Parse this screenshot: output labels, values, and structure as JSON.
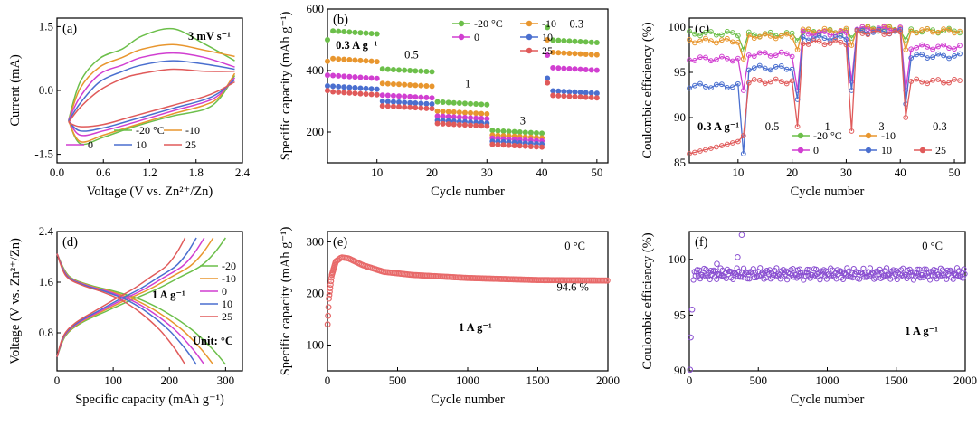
{
  "chart_data": [
    {
      "panel": "a",
      "type": "line",
      "panel_label": "(a)",
      "annotation": "3 mV s⁻¹",
      "xlabel": "Voltage (V vs. Zn²⁺/Zn)",
      "ylabel": "Current (mA)",
      "xlim": [
        0,
        2.4
      ],
      "ylim": [
        -1.7,
        1.7
      ],
      "xticks": [
        0,
        0.6,
        1.2,
        1.8,
        2.4
      ],
      "xtick_labels": [
        "0.0",
        "0.6",
        "1.2",
        "1.8",
        "2.4"
      ],
      "yticks": [
        -1.5,
        0,
        1.5
      ],
      "ytick_labels": [
        "-1.5",
        "0.0",
        "1.5"
      ],
      "legend_position": "bottom",
      "series": [
        {
          "name": "-20 °C",
          "color": "#6cbf4a",
          "anodic": [
            [
              0.15,
              -0.7
            ],
            [
              0.3,
              0.2
            ],
            [
              0.55,
              0.75
            ],
            [
              0.85,
              0.98
            ],
            [
              1.1,
              1.28
            ],
            [
              1.5,
              1.45
            ],
            [
              1.9,
              1.1
            ],
            [
              2.3,
              0.7
            ]
          ],
          "cathodic": [
            [
              2.3,
              0.35
            ],
            [
              2.1,
              -0.2
            ],
            [
              1.9,
              -0.45
            ],
            [
              1.5,
              -0.6
            ],
            [
              1.0,
              -0.85
            ],
            [
              0.6,
              -1.1
            ],
            [
              0.3,
              -1.25
            ],
            [
              0.15,
              -0.7
            ]
          ]
        },
        {
          "name": "-10",
          "color": "#e8962e",
          "anodic": [
            [
              0.15,
              -0.72
            ],
            [
              0.3,
              0.05
            ],
            [
              0.55,
              0.55
            ],
            [
              0.85,
              0.78
            ],
            [
              1.1,
              0.97
            ],
            [
              1.5,
              1.08
            ],
            [
              1.9,
              0.95
            ],
            [
              2.3,
              0.8
            ]
          ],
          "cathodic": [
            [
              2.3,
              0.4
            ],
            [
              2.1,
              -0.15
            ],
            [
              1.9,
              -0.35
            ],
            [
              1.5,
              -0.55
            ],
            [
              1.0,
              -0.82
            ],
            [
              0.6,
              -1.05
            ],
            [
              0.3,
              -1.2
            ],
            [
              0.15,
              -0.72
            ]
          ]
        },
        {
          "name": "0",
          "color": "#d13fd1",
          "anodic": [
            [
              0.15,
              -0.7
            ],
            [
              0.3,
              -0.15
            ],
            [
              0.55,
              0.38
            ],
            [
              0.85,
              0.6
            ],
            [
              1.1,
              0.78
            ],
            [
              1.5,
              0.88
            ],
            [
              1.9,
              0.78
            ],
            [
              2.3,
              0.55
            ]
          ],
          "cathodic": [
            [
              2.3,
              0.3
            ],
            [
              2.1,
              -0.1
            ],
            [
              1.9,
              -0.28
            ],
            [
              1.5,
              -0.48
            ],
            [
              1.0,
              -0.75
            ],
            [
              0.6,
              -0.95
            ],
            [
              0.3,
              -1.05
            ],
            [
              0.15,
              -0.7
            ]
          ]
        },
        {
          "name": "10",
          "color": "#4a6fcf",
          "anodic": [
            [
              0.15,
              -0.72
            ],
            [
              0.3,
              -0.3
            ],
            [
              0.55,
              0.2
            ],
            [
              0.85,
              0.45
            ],
            [
              1.1,
              0.6
            ],
            [
              1.5,
              0.7
            ],
            [
              1.9,
              0.62
            ],
            [
              2.3,
              0.5
            ]
          ],
          "cathodic": [
            [
              2.3,
              0.25
            ],
            [
              2.1,
              -0.05
            ],
            [
              1.9,
              -0.22
            ],
            [
              1.5,
              -0.42
            ],
            [
              1.0,
              -0.68
            ],
            [
              0.6,
              -0.88
            ],
            [
              0.3,
              -0.95
            ],
            [
              0.15,
              -0.72
            ]
          ]
        },
        {
          "name": "25",
          "color": "#e05a5a",
          "anodic": [
            [
              0.15,
              -0.75
            ],
            [
              0.3,
              -0.4
            ],
            [
              0.55,
              0.0
            ],
            [
              0.85,
              0.28
            ],
            [
              1.1,
              0.4
            ],
            [
              1.5,
              0.5
            ],
            [
              1.9,
              0.45
            ],
            [
              2.3,
              0.45
            ]
          ],
          "cathodic": [
            [
              2.3,
              0.2
            ],
            [
              2.1,
              0.0
            ],
            [
              1.9,
              -0.15
            ],
            [
              1.5,
              -0.35
            ],
            [
              1.0,
              -0.6
            ],
            [
              0.6,
              -0.8
            ],
            [
              0.3,
              -0.85
            ],
            [
              0.15,
              -0.75
            ]
          ]
        }
      ]
    },
    {
      "panel": "b",
      "type": "scatter",
      "panel_label": "(b)",
      "xlabel": "Cycle number",
      "ylabel": "Specific capacity  (mAh g⁻¹)",
      "xlim": [
        1,
        52
      ],
      "ylim": [
        100,
        600
      ],
      "xticks": [
        10,
        20,
        30,
        40,
        50
      ],
      "yticks": [
        200,
        400,
        600
      ],
      "rate_labels": [
        {
          "text": "0.3 A g⁻¹",
          "x": 2.5,
          "y": 470
        },
        {
          "text": "0.5",
          "x": 15,
          "y": 440
        },
        {
          "text": "1",
          "x": 26,
          "y": 345
        },
        {
          "text": "3",
          "x": 36,
          "y": 225
        },
        {
          "text": "0.3",
          "x": 45,
          "y": 540
        }
      ],
      "legend_position": "top",
      "segments": [
        [
          1,
          10
        ],
        [
          11,
          20
        ],
        [
          21,
          30
        ],
        [
          31,
          40
        ],
        [
          41,
          50
        ]
      ],
      "series": [
        {
          "name": "-20 °C",
          "color": "#6cbf4a",
          "levels": [
            530,
            405,
            298,
            205,
            500
          ],
          "first": [
            500,
            425
          ]
        },
        {
          "name": "-10",
          "color": "#e8962e",
          "levels": [
            440,
            358,
            268,
            190,
            460
          ],
          "first": [
            430,
            375
          ]
        },
        {
          "name": "0",
          "color": "#d13fd1",
          "levels": [
            385,
            320,
            252,
            180,
            410
          ],
          "first": [
            385,
            340
          ]
        },
        {
          "name": "10",
          "color": "#4a6fcf",
          "levels": [
            350,
            300,
            238,
            170,
            335
          ],
          "first": [
            350,
            320
          ]
        },
        {
          "name": "25",
          "color": "#e05a5a",
          "levels": [
            332,
            285,
            228,
            160,
            320
          ],
          "first": [
            335,
            305
          ]
        }
      ]
    },
    {
      "panel": "c",
      "type": "line",
      "panel_label": "(c)",
      "xlabel": "Cycle number",
      "ylabel": "Coulombic efficiency (%)",
      "xlim": [
        1,
        52
      ],
      "ylim": [
        85,
        101
      ],
      "xticks": [
        10,
        20,
        30,
        40,
        50
      ],
      "yticks": [
        85,
        90,
        95,
        100
      ],
      "rate_labels": [
        {
          "text": "0.3 A g⁻¹",
          "x": 2.5,
          "y": 88.6
        },
        {
          "text": "0.5",
          "x": 15,
          "y": 88.6
        },
        {
          "text": "1",
          "x": 26,
          "y": 88.6
        },
        {
          "text": "3",
          "x": 36,
          "y": 88.6
        },
        {
          "text": "0.3",
          "x": 46,
          "y": 88.6
        }
      ],
      "legend_position": "bottom",
      "series": [
        {
          "name": "-20 °C",
          "color": "#6cbf4a",
          "base": [
            99.3,
            99.2,
            99.5,
            99.8,
            99.6
          ],
          "dips": [
            [
              11,
              97.5
            ],
            [
              21,
              98.5
            ],
            [
              31,
              98.8
            ],
            [
              41,
              98.6
            ]
          ]
        },
        {
          "name": "-10",
          "color": "#e8962e",
          "base": [
            98.5,
            99.0,
            99.6,
            99.9,
            99.6
          ],
          "dips": [
            [
              11,
              96.5
            ],
            [
              21,
              97.5
            ],
            [
              31,
              98.0
            ],
            [
              41,
              97.5
            ]
          ]
        },
        {
          "name": "0",
          "color": "#d13fd1",
          "base": [
            96.5,
            97.0,
            99.3,
            99.8,
            97.8
          ],
          "dips": [
            [
              11,
              93.0
            ],
            [
              21,
              93.0
            ],
            [
              31,
              94.0
            ],
            [
              41,
              93.0
            ]
          ]
        },
        {
          "name": "10",
          "color": "#4a6fcf",
          "base": [
            93.5,
            95.5,
            98.8,
            99.5,
            96.8
          ],
          "dips": [
            [
              11,
              86.0
            ],
            [
              21,
              92.0
            ],
            [
              31,
              93.0
            ],
            [
              41,
              91.5
            ]
          ]
        },
        {
          "name": "25",
          "color": "#e05a5a",
          "base": [
            86.5,
            94.0,
            98.3,
            99.4,
            94.0
          ],
          "dips": [
            [
              11,
              88.0
            ],
            [
              21,
              89.0
            ],
            [
              31,
              88.5
            ],
            [
              41,
              90.0
            ]
          ]
        }
      ]
    },
    {
      "panel": "d",
      "type": "line",
      "panel_label": "(d)",
      "annotation_rate": "1 A g⁻¹",
      "annotation_unit": "Unit: °C",
      "xlabel": "Specific capacity  (mAh g⁻¹)",
      "ylabel": "Voltage (V vs. Zn²⁺/Zn)",
      "xlim": [
        0,
        330
      ],
      "ylim": [
        0.2,
        2.4
      ],
      "xticks": [
        0,
        100,
        200,
        300
      ],
      "yticks": [
        0.8,
        1.6,
        2.4
      ],
      "legend_position": "right",
      "series": [
        {
          "name": "-20",
          "color": "#6cbf4a",
          "capacity": 300
        },
        {
          "name": "-10",
          "color": "#e8962e",
          "capacity": 278
        },
        {
          "name": "0",
          "color": "#d13fd1",
          "capacity": 262
        },
        {
          "name": "10",
          "color": "#4a6fcf",
          "capacity": 248
        },
        {
          "name": "25",
          "color": "#e05a5a",
          "capacity": 228
        }
      ]
    },
    {
      "panel": "e",
      "type": "scatter",
      "panel_label": "(e)",
      "annotation_temp": "0 °C",
      "annotation_rate": "1 A g⁻¹",
      "retention": "94.6 %",
      "xlabel": "Cycle number",
      "ylabel": "Specific capacity  (mAh g⁻¹)",
      "xlim": [
        0,
        2000
      ],
      "ylim": [
        50,
        320
      ],
      "xticks": [
        0,
        500,
        1000,
        1500,
        2000
      ],
      "yticks": [
        100,
        200,
        300
      ],
      "color": "#e86a6a",
      "trend": [
        [
          1,
          140
        ],
        [
          10,
          190
        ],
        [
          30,
          235
        ],
        [
          60,
          262
        ],
        [
          100,
          270
        ],
        [
          150,
          268
        ],
        [
          250,
          255
        ],
        [
          400,
          242
        ],
        [
          600,
          236
        ],
        [
          1000,
          230
        ],
        [
          1500,
          226
        ],
        [
          2000,
          225
        ]
      ]
    },
    {
      "panel": "f",
      "type": "scatter",
      "panel_label": "(f)",
      "annotation_temp": "0 °C",
      "annotation_rate": "1 A g⁻¹",
      "xlabel": "Cycle number",
      "ylabel": "Coulombic efficiency (%)",
      "xlim": [
        0,
        2000
      ],
      "ylim": [
        90,
        102.5
      ],
      "xticks": [
        0,
        500,
        1000,
        1500,
        2000
      ],
      "yticks": [
        90,
        95,
        100
      ],
      "color": "#8a4fd1",
      "mean": 98.7,
      "outliers": [
        [
          380,
          102.2
        ],
        [
          350,
          100.2
        ],
        [
          200,
          99.6
        ],
        [
          20,
          95.5
        ],
        [
          10,
          93.0
        ],
        [
          5,
          90.1
        ]
      ]
    }
  ]
}
